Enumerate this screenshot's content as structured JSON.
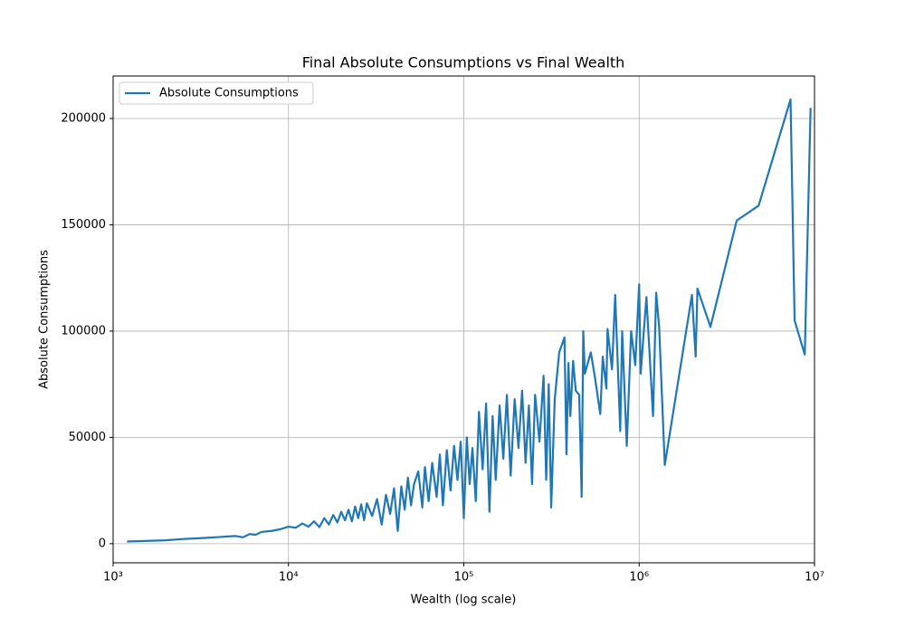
{
  "chart_data": {
    "type": "line",
    "title": "Final Absolute Consumptions vs Final Wealth",
    "x_label": "Wealth (log scale)",
    "y_label": "Absolute Consumptions",
    "x_scale": "log",
    "grid": true,
    "legend": "upper left",
    "xlim": [
      1000,
      10000000
    ],
    "xticks": [
      {
        "value": 1000,
        "label": "10³"
      },
      {
        "value": 10000,
        "label": "10⁴"
      },
      {
        "value": 100000,
        "label": "10⁵"
      },
      {
        "value": 1000000,
        "label": "10⁶"
      },
      {
        "value": 10000000,
        "label": "10⁷"
      }
    ],
    "ylim": [
      -9000,
      220000
    ],
    "yticks": [
      0,
      50000,
      100000,
      150000,
      200000
    ],
    "x": [
      1200,
      2000,
      2500,
      3000,
      3500,
      4000,
      4500,
      5000,
      5500,
      6000,
      6500,
      7000,
      8000,
      9000,
      10000,
      11000,
      12000,
      13000,
      14000,
      15000,
      16000,
      17000,
      18000,
      19000,
      20000,
      21000,
      22000,
      23000,
      24000,
      25000,
      26000,
      27000,
      28000,
      30000,
      32000,
      34000,
      36000,
      38000,
      40000,
      42000,
      44000,
      46000,
      48000,
      50000,
      52000,
      55000,
      58000,
      60000,
      63000,
      66000,
      70000,
      73000,
      76000,
      80000,
      84000,
      88000,
      92000,
      96000,
      100000,
      104000,
      108000,
      112000,
      117000,
      122000,
      128000,
      134000,
      140000,
      146000,
      152000,
      160000,
      168000,
      176000,
      185000,
      195000,
      205000,
      215000,
      225000,
      235000,
      245000,
      255000,
      270000,
      285000,
      295000,
      305000,
      315000,
      330000,
      350000,
      375000,
      385000,
      395000,
      405000,
      420000,
      435000,
      455000,
      470000,
      480000,
      490000,
      530000,
      560000,
      600000,
      620000,
      650000,
      660000,
      700000,
      730000,
      780000,
      800000,
      850000,
      900000,
      950000,
      1000000,
      1020000,
      1100000,
      1200000,
      1250000,
      1300000,
      1400000,
      2000000,
      2100000,
      2150000,
      2550000,
      3600000,
      4800000,
      7300000,
      7700000,
      8800000,
      9500000
    ],
    "series": [
      {
        "name": "Absolute Consumptions",
        "color": "#1f77b4",
        "values": [
          1000,
          1600,
          2200,
          2500,
          2800,
          3100,
          3400,
          3600,
          3000,
          4500,
          4200,
          5500,
          6000,
          6800,
          8000,
          7500,
          9500,
          8000,
          10500,
          7800,
          12000,
          9000,
          13500,
          10000,
          15000,
          11000,
          16000,
          10500,
          17500,
          12000,
          18500,
          11000,
          19000,
          13000,
          21000,
          9000,
          23000,
          14000,
          26000,
          6000,
          27000,
          16000,
          31000,
          18000,
          28000,
          34000,
          17000,
          36000,
          20000,
          38000,
          22000,
          42000,
          18000,
          44000,
          25000,
          46000,
          30000,
          48000,
          12000,
          50000,
          28000,
          45000,
          20000,
          62000,
          35000,
          66000,
          15000,
          60000,
          30000,
          65000,
          40000,
          70000,
          32000,
          68000,
          45000,
          72000,
          38000,
          65000,
          28000,
          70000,
          48000,
          79000,
          30000,
          75000,
          17000,
          68000,
          90000,
          97000,
          42000,
          85000,
          60000,
          86000,
          72000,
          70000,
          22000,
          100000,
          80000,
          90000,
          78000,
          61000,
          88000,
          73000,
          101000,
          82000,
          117000,
          53000,
          100000,
          46000,
          100000,
          84000,
          122000,
          80000,
          116000,
          60000,
          118000,
          102000,
          37000,
          117000,
          88000,
          120000,
          102000,
          152000,
          159000,
          209000,
          105000,
          89000,
          205000
        ]
      }
    ]
  }
}
